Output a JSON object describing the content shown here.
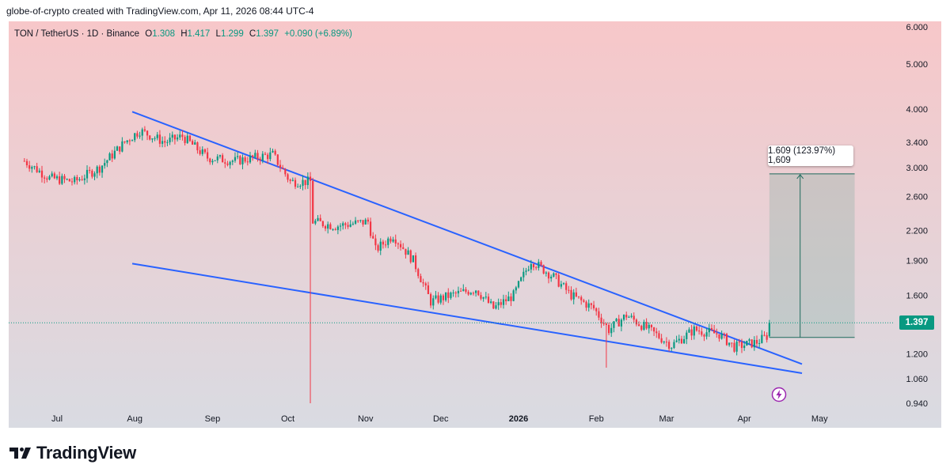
{
  "header": {
    "credit": "globe-of-crypto created with TradingView.com, Apr 11, 2026 08:44 UTC-4"
  },
  "legend": {
    "symbol": "TON / TetherUS · 1D · Binance",
    "open_label": "O",
    "open": "1.308",
    "high_label": "H",
    "high": "1.417",
    "low_label": "L",
    "low": "1.299",
    "close_label": "C",
    "close": "1.397",
    "change": "+0.090 (+6.89%)"
  },
  "chart_data": {
    "type": "candlestick",
    "title": "",
    "y_scale": "log",
    "ylim": [
      0.9,
      6.2
    ],
    "y_ticks": [
      "6.000",
      "5.000",
      "4.000",
      "3.400",
      "3.000",
      "2.600",
      "2.200",
      "1.900",
      "1.600",
      "1.400",
      "1.200",
      "1.060",
      "0.940"
    ],
    "x_ticks": [
      "Jul",
      "Aug",
      "Sep",
      "Oct",
      "Nov",
      "Dec",
      "2026",
      "Feb",
      "Mar",
      "Apr",
      "May"
    ],
    "x_ticks_bold": [
      "2026"
    ],
    "last_price": "1.397",
    "last_price_color": "#089981",
    "up_color": "#089981",
    "down_color": "#f23645",
    "trendline_color": "#2962ff",
    "background_gradient": [
      "#f7c7c9",
      "#d9dbe2"
    ],
    "approx_path": [
      {
        "date": "2025-06-18",
        "price": 3.1
      },
      {
        "date": "2025-06-28",
        "price": 2.85
      },
      {
        "date": "2025-07-08",
        "price": 2.8
      },
      {
        "date": "2025-07-18",
        "price": 3.0
      },
      {
        "date": "2025-07-28",
        "price": 3.4
      },
      {
        "date": "2025-08-03",
        "price": 3.6
      },
      {
        "date": "2025-08-13",
        "price": 3.4
      },
      {
        "date": "2025-08-20",
        "price": 3.5
      },
      {
        "date": "2025-08-30",
        "price": 3.15
      },
      {
        "date": "2025-09-10",
        "price": 3.1
      },
      {
        "date": "2025-09-25",
        "price": 3.2
      },
      {
        "date": "2025-10-02",
        "price": 2.8
      },
      {
        "date": "2025-10-10",
        "price": 2.8
      },
      {
        "date": "2025-10-11",
        "price": 2.3
      },
      {
        "date": "2025-10-20",
        "price": 2.25
      },
      {
        "date": "2025-11-02",
        "price": 2.3
      },
      {
        "date": "2025-11-05",
        "price": 2.0
      },
      {
        "date": "2025-11-12",
        "price": 2.15
      },
      {
        "date": "2025-11-20",
        "price": 1.9
      },
      {
        "date": "2025-11-27",
        "price": 1.55
      },
      {
        "date": "2025-12-05",
        "price": 1.6
      },
      {
        "date": "2025-12-15",
        "price": 1.65
      },
      {
        "date": "2025-12-22",
        "price": 1.5
      },
      {
        "date": "2025-12-30",
        "price": 1.6
      },
      {
        "date": "2026-01-06",
        "price": 1.9
      },
      {
        "date": "2026-01-15",
        "price": 1.75
      },
      {
        "date": "2026-01-22",
        "price": 1.6
      },
      {
        "date": "2026-01-31",
        "price": 1.5
      },
      {
        "date": "2026-02-06",
        "price": 1.35
      },
      {
        "date": "2026-02-13",
        "price": 1.45
      },
      {
        "date": "2026-02-22",
        "price": 1.35
      },
      {
        "date": "2026-03-03",
        "price": 1.25
      },
      {
        "date": "2026-03-12",
        "price": 1.35
      },
      {
        "date": "2026-03-22",
        "price": 1.32
      },
      {
        "date": "2026-03-28",
        "price": 1.24
      },
      {
        "date": "2026-04-06",
        "price": 1.27
      },
      {
        "date": "2026-04-10",
        "price": 1.308
      },
      {
        "date": "2026-04-11",
        "price": 1.397
      }
    ],
    "wicks": [
      {
        "date": "2025-10-10",
        "high": 2.85,
        "low": 0.94
      },
      {
        "date": "2026-02-05",
        "high": 1.3,
        "low": 1.12
      }
    ],
    "trendlines": [
      {
        "name": "",
        "from": {
          "date": "2025-07-31",
          "price": 3.95
        },
        "to": {
          "date": "2026-04-24",
          "price": 1.14
        }
      },
      {
        "name": "",
        "from": {
          "date": "2025-07-31",
          "price": 1.87
        },
        "to": {
          "date": "2026-04-24",
          "price": 1.09
        }
      }
    ],
    "measure": {
      "label": "1.609 (123.97%) 1,609",
      "from_price": 1.3,
      "to_price": 2.909,
      "from_date": "2026-04-11",
      "to_date": "2026-05-15"
    }
  },
  "branding": {
    "logo_text": "TradingView"
  }
}
